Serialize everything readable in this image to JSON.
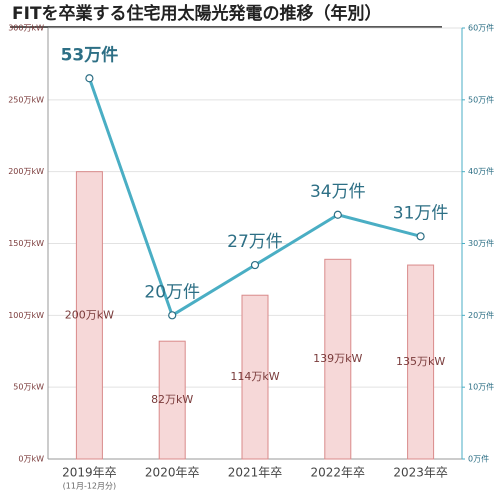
{
  "chart_data": {
    "type": "bar_line",
    "title": "FITを卒業する住宅用太陽光発電の推移（年別）",
    "categories": [
      "2019年卒",
      "2020年卒",
      "2021年卒",
      "2022年卒",
      "2023年卒"
    ],
    "category_sublabels": [
      "(11月-12月分)",
      null,
      null,
      null,
      null
    ],
    "series": [
      {
        "type": "bar",
        "color": "#f6d8d8",
        "stroke": "#d98a8a",
        "values": [
          200,
          82,
          114,
          139,
          135
        ],
        "value_labels": [
          "200万kW",
          "82万kW",
          "114万kW",
          "139万kW",
          "135万kW"
        ]
      },
      {
        "type": "line",
        "axis": "y2",
        "color": "#4aaec4",
        "values": [
          53,
          20,
          27,
          34,
          31
        ],
        "value_labels": [
          "53万件",
          "20万件",
          "27万件",
          "34万件",
          "31万件"
        ]
      }
    ],
    "ylim": [
      0,
      300
    ],
    "yticks": [
      {
        "value": 0,
        "label": "0万kW"
      },
      {
        "value": 50,
        "label": "50万kW"
      },
      {
        "value": 100,
        "label": "100万kW"
      },
      {
        "value": 150,
        "label": "150万kW"
      },
      {
        "value": 200,
        "label": "200万kW"
      },
      {
        "value": 250,
        "label": "250万kW"
      },
      {
        "value": 300,
        "label": "300万kW"
      }
    ],
    "y2lim": [
      0,
      60
    ],
    "y2ticks": [
      {
        "value": 0,
        "label": "0万件"
      },
      {
        "value": 10,
        "label": "10万件"
      },
      {
        "value": 20,
        "label": "20万件"
      },
      {
        "value": 30,
        "label": "30万件"
      },
      {
        "value": 40,
        "label": "40万件"
      },
      {
        "value": 50,
        "label": "50万件"
      },
      {
        "value": 60,
        "label": "60万件"
      }
    ],
    "grid": true
  }
}
